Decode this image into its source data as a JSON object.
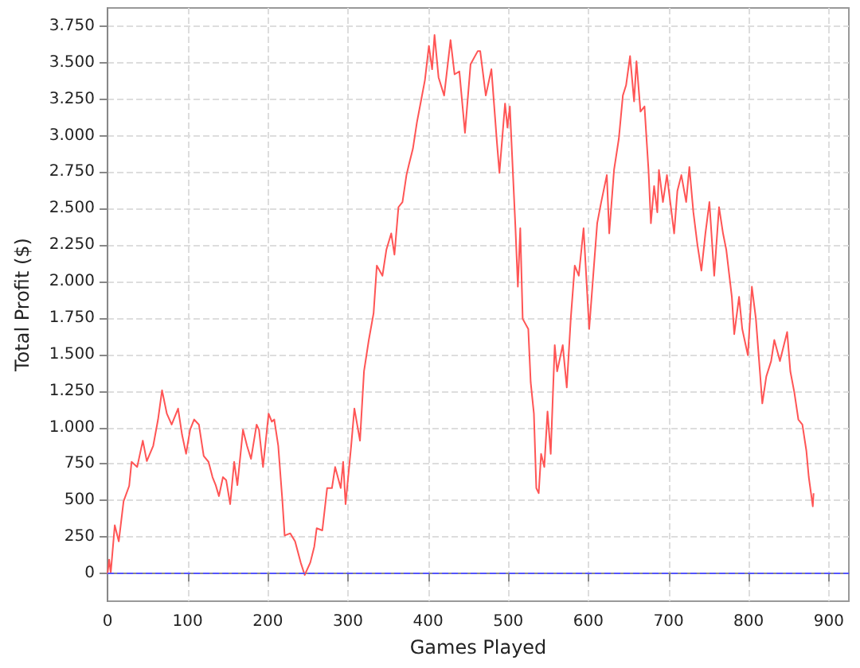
{
  "chart_data": {
    "type": "line",
    "xlabel": "Games Played",
    "ylabel": "Total Profit ($)",
    "xlim": [
      0,
      925
    ],
    "ylim": [
      -190,
      3875
    ],
    "xticks": [
      0,
      100,
      200,
      300,
      400,
      500,
      600,
      700,
      800,
      900
    ],
    "yticks": [
      0,
      250,
      500,
      750,
      {
        "value": 1000,
        "label": "1.000"
      },
      {
        "value": 1250,
        "label": "1.250"
      },
      {
        "value": 1500,
        "label": "1.500"
      },
      {
        "value": 1750,
        "label": "1.750"
      },
      {
        "value": 2000,
        "label": "2.000"
      },
      {
        "value": 2250,
        "label": "2.250"
      },
      {
        "value": 2500,
        "label": "2.500"
      },
      {
        "value": 2750,
        "label": "2.750"
      },
      {
        "value": 3000,
        "label": "3.000"
      },
      {
        "value": 3250,
        "label": "3.250"
      },
      {
        "value": 3500,
        "label": "3.500"
      },
      {
        "value": 3750,
        "label": "3.750"
      }
    ],
    "grid": true,
    "marker": "none",
    "line_style": "solid",
    "ref_lines": [
      {
        "axis": "y",
        "value": 0,
        "label": null,
        "color": "#5555ff",
        "line_style": "dashed"
      }
    ],
    "series": [
      {
        "color": "#ff5555",
        "x": [
          0,
          2,
          4,
          9,
          14,
          20,
          27,
          30,
          37,
          44,
          49,
          57,
          63,
          68,
          74,
          80,
          88,
          93,
          98,
          103,
          108,
          114,
          120,
          126,
          131,
          135,
          139,
          144,
          148,
          153,
          158,
          162,
          169,
          174,
          179,
          186,
          189,
          194,
          201,
          205,
          208,
          213,
          218,
          221,
          228,
          234,
          241,
          246,
          253,
          258,
          261,
          268,
          274,
          280,
          284,
          291,
          294,
          297,
          304,
          308,
          315,
          320,
          326,
          332,
          336,
          343,
          348,
          354,
          358,
          363,
          368,
          373,
          376,
          381,
          386,
          391,
          396,
          401,
          405,
          408,
          413,
          420,
          428,
          433,
          439,
          446,
          453,
          462,
          465,
          472,
          479,
          486,
          489,
          496,
          499,
          502,
          509,
          512,
          515,
          518,
          525,
          528,
          532,
          535,
          538,
          541,
          545,
          549,
          553,
          558,
          561,
          568,
          573,
          578,
          583,
          588,
          594,
          601,
          606,
          611,
          616,
          623,
          626,
          632,
          638,
          643,
          647,
          652,
          657,
          660,
          665,
          670,
          675,
          678,
          682,
          686,
          688,
          693,
          698,
          707,
          711,
          716,
          722,
          726,
          731,
          736,
          741,
          746,
          751,
          757,
          763,
          768,
          772,
          779,
          782,
          788,
          792,
          799,
          804,
          809,
          814,
          817,
          822,
          828,
          832,
          839,
          848,
          852,
          857,
          862,
          867,
          872,
          875,
          880,
          881
        ],
        "values": [
          0,
          95,
          5,
          330,
          220,
          495,
          600,
          765,
          730,
          910,
          770,
          875,
          1055,
          1255,
          1095,
          1020,
          1130,
          950,
          820,
          985,
          1055,
          1020,
          805,
          765,
          660,
          605,
          530,
          660,
          640,
          475,
          765,
          605,
          985,
          875,
          785,
          1020,
          985,
          730,
          1095,
          1040,
          1055,
          875,
          510,
          260,
          275,
          220,
          75,
          -10,
          75,
          185,
          310,
          295,
          585,
          585,
          730,
          585,
          765,
          475,
          875,
          1130,
          910,
          1385,
          1600,
          1785,
          2110,
          2040,
          2220,
          2330,
          2185,
          2510,
          2545,
          2730,
          2800,
          2910,
          3090,
          3235,
          3380,
          3615,
          3455,
          3690,
          3400,
          3275,
          3655,
          3420,
          3440,
          3020,
          3490,
          3580,
          3580,
          3275,
          3455,
          2945,
          2745,
          3220,
          3055,
          3200,
          2365,
          1965,
          2365,
          1745,
          1675,
          1310,
          1095,
          585,
          550,
          820,
          730,
          1110,
          820,
          1565,
          1385,
          1565,
          1275,
          1745,
          2110,
          2040,
          2365,
          1675,
          2040,
          2400,
          2545,
          2730,
          2330,
          2765,
          2980,
          3275,
          3345,
          3545,
          3235,
          3510,
          3165,
          3200,
          2765,
          2400,
          2655,
          2475,
          2765,
          2545,
          2730,
          2330,
          2620,
          2730,
          2545,
          2785,
          2475,
          2255,
          2075,
          2330,
          2545,
          2040,
          2510,
          2330,
          2220,
          1895,
          1640,
          1895,
          1675,
          1495,
          1965,
          1745,
          1385,
          1165,
          1350,
          1455,
          1600,
          1455,
          1655,
          1385,
          1240,
          1055,
          1020,
          840,
          660,
          460,
          550
        ]
      }
    ]
  }
}
